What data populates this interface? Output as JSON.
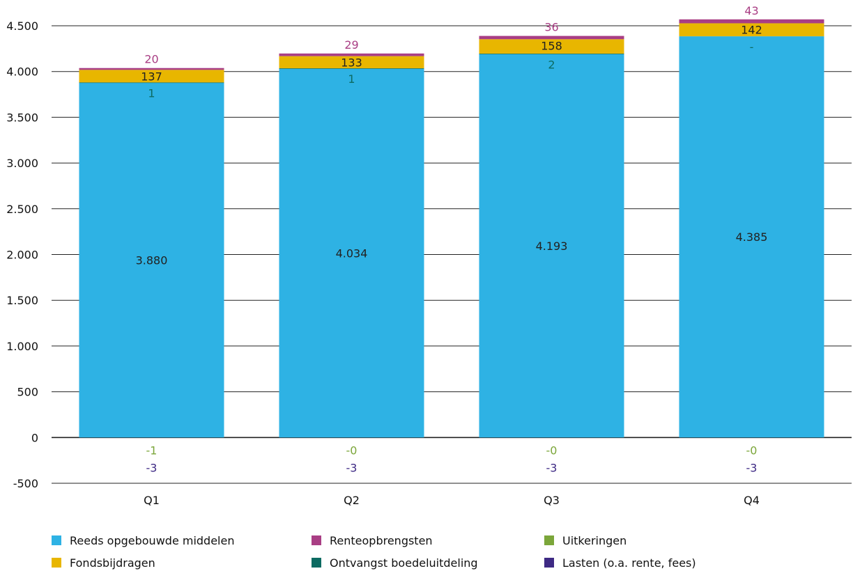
{
  "chart_data": {
    "type": "bar",
    "stacked": true,
    "categories": [
      "Q1",
      "Q2",
      "Q3",
      "Q4"
    ],
    "ylim": [
      -500,
      4500
    ],
    "yticks": [
      4500,
      4000,
      3500,
      3000,
      2500,
      2000,
      1500,
      1000,
      500,
      0,
      -500
    ],
    "ytick_labels": [
      "4.500",
      "4.000",
      "3.500",
      "3.000",
      "2.500",
      "2.000",
      "1.500",
      "1.000",
      "500",
      "0",
      "-500"
    ],
    "grid": "horizontal",
    "legend_position": "bottom",
    "series": [
      {
        "name": "Reeds opgebouwde middelen",
        "color": "#2eb2e4",
        "stack": "positive",
        "values": [
          3880,
          4034,
          4193,
          4385
        ],
        "labels": [
          "3.880",
          "4.034",
          "4.193",
          "4.385"
        ]
      },
      {
        "name": "Ontvangst boedeluitdeling",
        "color": "#0c6b62",
        "stack": "positive",
        "values": [
          1,
          1,
          2,
          0
        ],
        "labels": [
          "1",
          "1",
          "2",
          "-"
        ]
      },
      {
        "name": "Fondsbijdragen",
        "color": "#e8b600",
        "stack": "positive",
        "values": [
          137,
          133,
          158,
          142
        ],
        "labels": [
          "137",
          "133",
          "158",
          "142"
        ]
      },
      {
        "name": "Renteopbrengsten",
        "color": "#a93e84",
        "stack": "positive",
        "values": [
          20,
          29,
          36,
          43
        ],
        "labels": [
          "20",
          "29",
          "36",
          "43"
        ]
      },
      {
        "name": "Uitkeringen",
        "color": "#7ba63a",
        "stack": "negative",
        "values": [
          -1,
          0,
          0,
          0
        ],
        "labels": [
          "-1",
          "-0",
          "-0",
          "-0"
        ]
      },
      {
        "name": "Lasten (o.a. rente, fees)",
        "color": "#3e2a84",
        "stack": "negative",
        "values": [
          -3,
          -3,
          -3,
          -3
        ],
        "labels": [
          "-3",
          "-3",
          "-3",
          "-3"
        ]
      }
    ],
    "legend": [
      {
        "series": "Reeds opgebouwde middelen",
        "color": "#2eb2e4"
      },
      {
        "series": "Renteopbrengsten",
        "color": "#a93e84"
      },
      {
        "series": "Uitkeringen",
        "color": "#7ba63a"
      },
      {
        "series": "Fondsbijdragen",
        "color": "#e8b600"
      },
      {
        "series": "Ontvangst boedeluitdeling",
        "color": "#0c6b62"
      },
      {
        "series": "Lasten (o.a. rente, fees)",
        "color": "#3e2a84"
      }
    ]
  }
}
